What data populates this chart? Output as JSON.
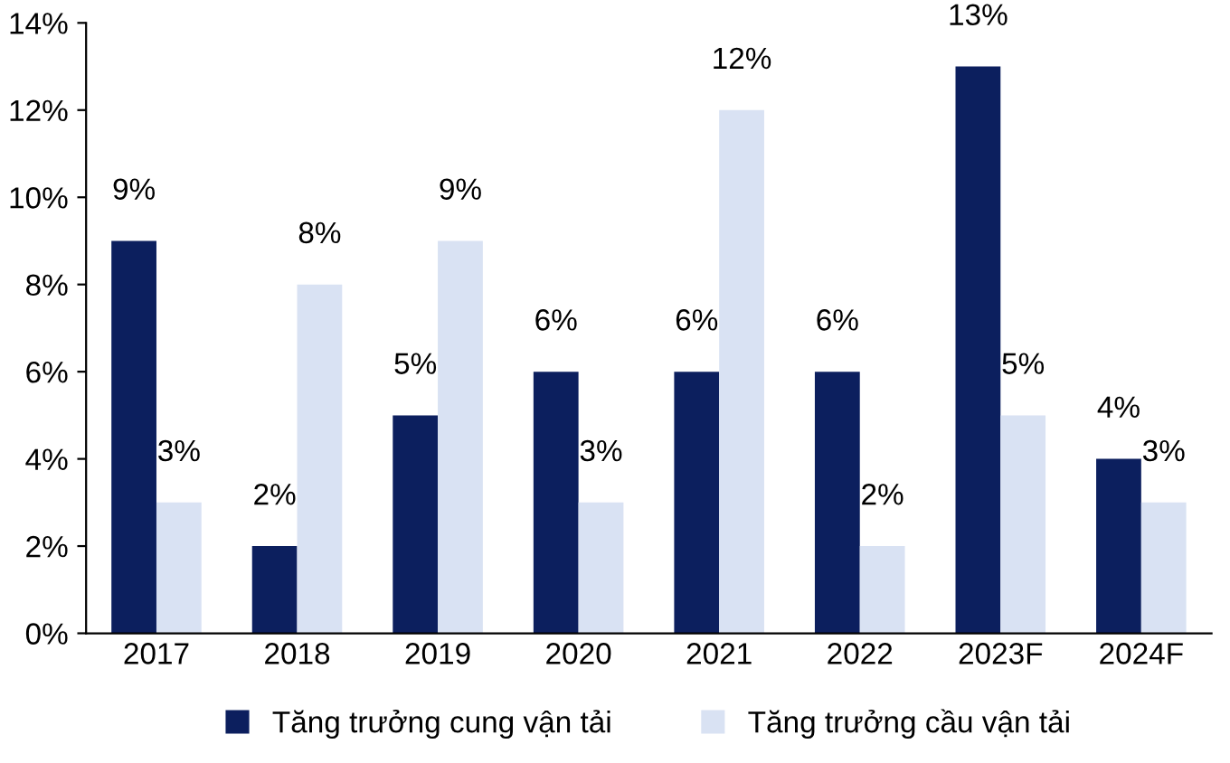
{
  "chart_data": {
    "type": "bar",
    "categories": [
      "2017",
      "2018",
      "2019",
      "2020",
      "2021",
      "2022",
      "2023F",
      "2024F"
    ],
    "series": [
      {
        "name": "Tăng trưởng cung vận tải",
        "color": "#0c1f5e",
        "values": [
          9,
          2,
          5,
          6,
          6,
          6,
          13,
          4
        ],
        "value_labels": [
          "9%",
          "2%",
          "5%",
          "6%",
          "6%",
          "6%",
          "13%",
          "4%"
        ]
      },
      {
        "name": "Tăng trưởng cầu vận tải",
        "color": "#d9e2f3",
        "values": [
          3,
          8,
          9,
          3,
          12,
          2,
          5,
          3
        ],
        "value_labels": [
          "3%",
          "8%",
          "9%",
          "3%",
          "12%",
          "2%",
          "5%",
          "3%"
        ]
      }
    ],
    "ylim": [
      0,
      14
    ],
    "yticks": [
      {
        "value": 0,
        "label": "0%"
      },
      {
        "value": 2,
        "label": "2%"
      },
      {
        "value": 4,
        "label": "4%"
      },
      {
        "value": 6,
        "label": "6%"
      },
      {
        "value": 8,
        "label": "8%"
      },
      {
        "value": 10,
        "label": "10%"
      },
      {
        "value": 12,
        "label": "12%"
      },
      {
        "value": 14,
        "label": "14%"
      }
    ],
    "grid": false,
    "legend": "bottom"
  }
}
